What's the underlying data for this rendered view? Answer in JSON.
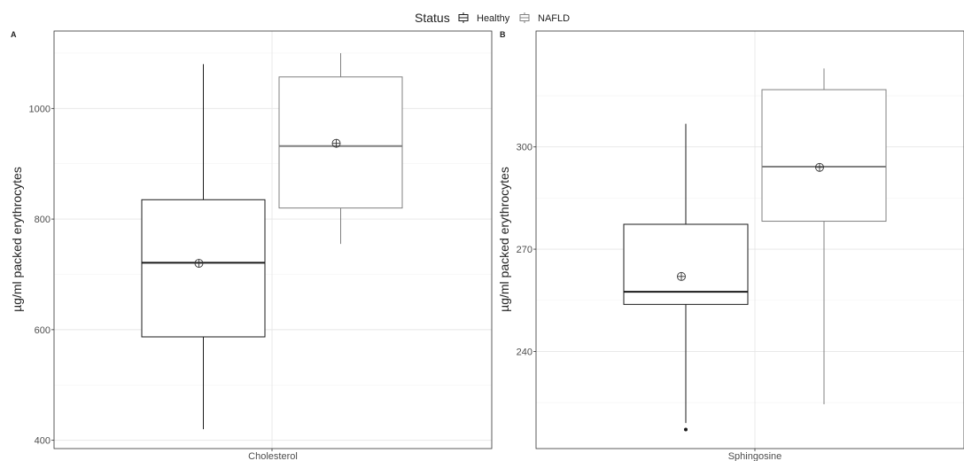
{
  "legend": {
    "title": "Status",
    "entries": [
      {
        "label": "Healthy",
        "color": "#1a1a1a"
      },
      {
        "label": "NAFLD",
        "color": "#808080"
      }
    ],
    "position": "top-center"
  },
  "chart_data": [
    {
      "panel": "A",
      "type": "box",
      "ylabel": "µg/ml packed erythrocytes",
      "xlabel": "Cholesterol",
      "categories": [
        "Cholesterol"
      ],
      "ylim": [
        385,
        1140
      ],
      "yticks": [
        400,
        600,
        800,
        1000
      ],
      "grid": true,
      "series": [
        {
          "name": "Healthy",
          "color": "#1a1a1a",
          "whisker_low": 420,
          "q1": 587,
          "median": 721,
          "q3": 835,
          "whisker_high": 1080,
          "mean": 720,
          "outliers": []
        },
        {
          "name": "NAFLD",
          "color": "#808080",
          "whisker_low": 755,
          "q1": 820,
          "median": 932,
          "q3": 1057,
          "whisker_high": 1100,
          "mean": 937,
          "outliers": []
        }
      ]
    },
    {
      "panel": "B",
      "type": "box",
      "ylabel": "µg/ml packed erythrocytes",
      "xlabel": "Sphingosine",
      "categories": [
        "Sphingosine"
      ],
      "ylim": [
        211.5,
        334
      ],
      "yticks": [
        240,
        270,
        300
      ],
      "grid": true,
      "series": [
        {
          "name": "Healthy",
          "color": "#1a1a1a",
          "whisker_low": 219,
          "q1": 253.8,
          "median": 257.5,
          "q3": 277.3,
          "whisker_high": 306.8,
          "mean": 262,
          "outliers": [
            217.1
          ]
        },
        {
          "name": "NAFLD",
          "color": "#808080",
          "whisker_low": 224.5,
          "q1": 278.2,
          "median": 294.2,
          "q3": 316.8,
          "whisker_high": 323,
          "mean": 294,
          "outliers": []
        }
      ]
    }
  ]
}
